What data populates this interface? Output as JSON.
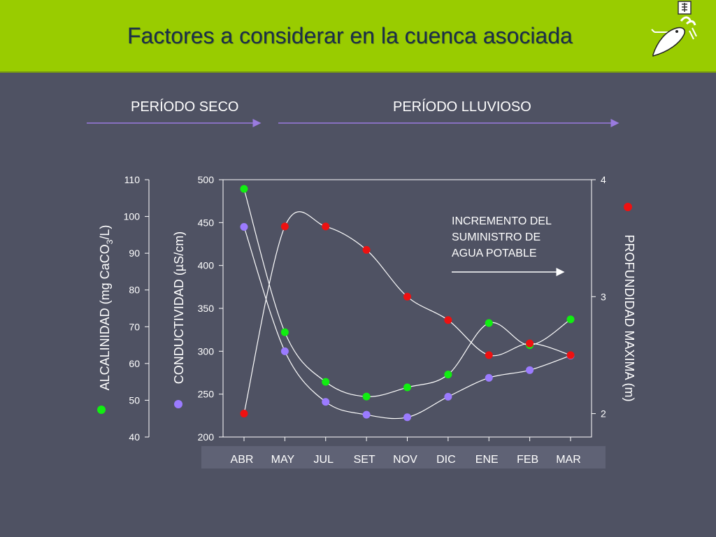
{
  "slide": {
    "title": "Factores a considerar en la cuenca asociada",
    "period_dry": "PERÍODO SECO",
    "period_wet": "PERÍODO LLUVIOSO",
    "annotation_lines": [
      "INCREMENTO DEL",
      "SUMINISTRO DE",
      "AGUA POTABLE"
    ]
  },
  "colors": {
    "header_bg": "#99cc00",
    "background": "#4f5263",
    "title": "#1a2e4a",
    "arrow": "#9a7be0",
    "alcalinidad": "#11ee11",
    "conductividad": "#9b7bff",
    "profundidad": "#ee1111"
  },
  "chart_data": {
    "type": "line",
    "categories": [
      "ABR",
      "MAY",
      "JUL",
      "SET",
      "NOV",
      "DIC",
      "ENE",
      "FEB",
      "MAR"
    ],
    "axes": {
      "left_outer": {
        "label": "ALCALINIDAD (mg CaCO3/L)",
        "label_main": "ALCALINIDAD (mg CaCO",
        "label_sub": "3",
        "label_end": "/L)",
        "range": [
          40,
          110
        ],
        "ticks": [
          40,
          50,
          60,
          70,
          80,
          90,
          100,
          110
        ]
      },
      "left_inner": {
        "label": "CONDUCTIVIDAD (µS/cm)",
        "range": [
          200,
          500
        ],
        "ticks": [
          200,
          250,
          300,
          350,
          400,
          450,
          500
        ]
      },
      "right": {
        "label": "PROFUNDIDAD MAXIMA (m)",
        "range": [
          1.8,
          4
        ],
        "ticks": [
          2,
          3,
          4
        ]
      }
    },
    "series": [
      {
        "name": "ALCALINIDAD",
        "axis": "left_outer",
        "color": "#11ee11",
        "values": [
          107.5,
          68.5,
          55,
          51,
          53.5,
          57,
          71,
          65,
          72
        ]
      },
      {
        "name": "CONDUCTIVIDAD",
        "axis": "left_inner",
        "color": "#9b7bff",
        "values": [
          445,
          300,
          241,
          226,
          223,
          247,
          269,
          278,
          295
        ]
      },
      {
        "name": "PROFUNDIDAD MAXIMA",
        "axis": "right",
        "color": "#ee1111",
        "values": [
          2.0,
          3.6,
          3.6,
          3.4,
          3.0,
          2.8,
          2.5,
          2.6,
          2.5
        ]
      }
    ],
    "grid": false
  }
}
